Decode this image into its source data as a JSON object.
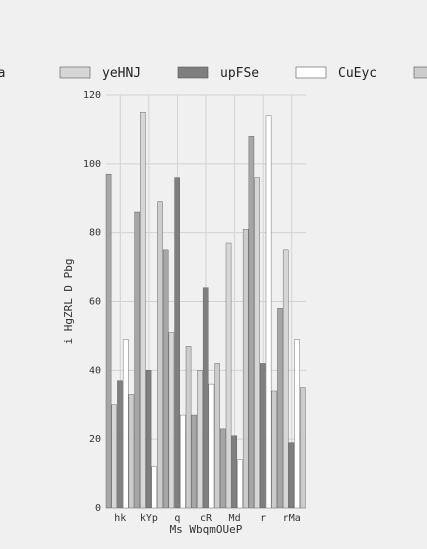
{
  "chart_data": {
    "type": "bar",
    "title": "",
    "xlabel": "Ms WbqmOUeP",
    "ylabel": "i HgZRL  D Pbg",
    "categories": [
      "hk",
      "kYp",
      "q",
      "cR",
      "Md",
      "r",
      "rMa"
    ],
    "ylim": [
      0,
      120
    ],
    "yticks": [
      0,
      20,
      40,
      60,
      80,
      100,
      120
    ],
    "grid": true,
    "legend_position": "top",
    "series": [
      {
        "name": "Fta",
        "color": "#a6a6a6",
        "values": [
          97,
          86,
          75,
          27,
          23,
          108,
          58
        ]
      },
      {
        "name": "yeHNJ",
        "color": "#d6d6d6",
        "values": [
          30,
          115,
          51,
          40,
          77,
          96,
          75
        ]
      },
      {
        "name": "upFSe",
        "color": "#7f7f7f",
        "values": [
          37,
          40,
          96,
          64,
          21,
          42,
          19
        ]
      },
      {
        "name": "CuEyc",
        "color": "#ffffff",
        "values": [
          49,
          12,
          27,
          36,
          14,
          114,
          49
        ]
      },
      {
        "name": "",
        "color": "#cccccc",
        "values": [
          33,
          89,
          47,
          42,
          81,
          34,
          35
        ]
      }
    ]
  }
}
